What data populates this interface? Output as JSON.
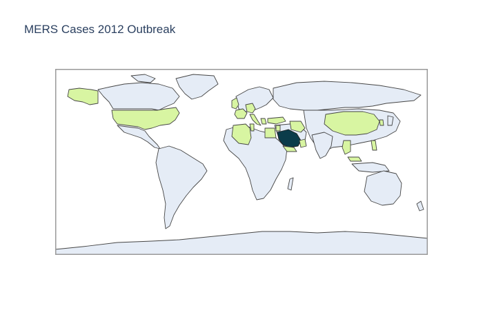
{
  "title": "MERS Cases 2012 Outbreak",
  "colors": {
    "ocean": "#ffffff",
    "land": "#e5ecf6",
    "border": "#444444",
    "low_cases": "#d8f5a2",
    "high_cases": "#0b3c4a",
    "frame": "#999999"
  },
  "map": {
    "projection": "equirectangular",
    "highlighted_countries": {
      "highest": [
        "Saudi Arabia"
      ],
      "low": [
        "United States",
        "United Kingdom",
        "France",
        "Germany",
        "Netherlands",
        "Austria",
        "Italy",
        "Greece",
        "Turkey",
        "Algeria",
        "Tunisia",
        "Egypt",
        "Lebanon",
        "Jordan",
        "Iran",
        "Yemen",
        "Oman",
        "United Arab Emirates",
        "Kuwait",
        "Qatar",
        "China",
        "Malaysia",
        "Thailand",
        "Philippines",
        "South Korea"
      ]
    }
  }
}
